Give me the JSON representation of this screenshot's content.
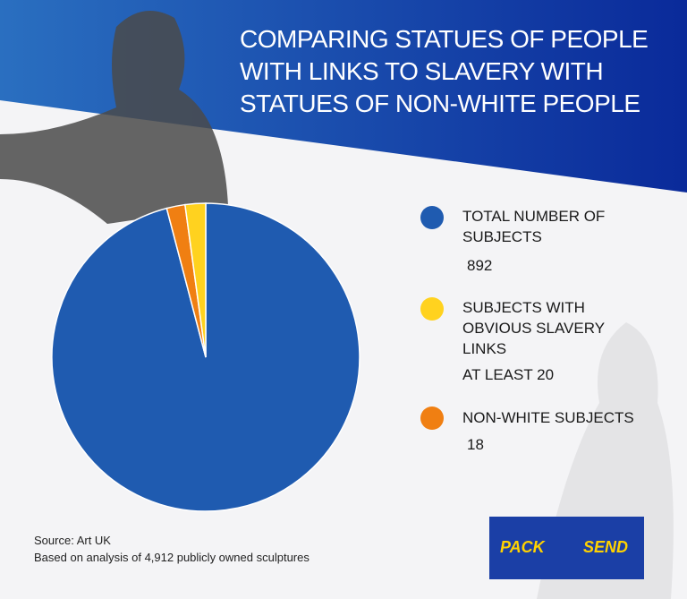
{
  "chart_data": {
    "type": "pie",
    "title": "COMPARING STATUES OF PEOPLE WITH LINKS TO SLAVERY WITH STATUES OF NON-WHITE PEOPLE",
    "categories": [
      "TOTAL NUMBER OF SUBJECTS",
      "SUBJECTS WITH OBVIOUS SLAVERY LINKS",
      "NON-WHITE SUBJECTS"
    ],
    "values": [
      892,
      20,
      18
    ],
    "value_labels": [
      "892",
      "AT LEAST 20",
      "18"
    ],
    "colors": [
      "#1f5bb0",
      "#ffd21f",
      "#f07f12"
    ],
    "source": "Source: Art UK",
    "note": "Based on analysis of 4,912 publicly owned sculptures"
  },
  "logo": {
    "left": "PACK",
    "right": "SEND"
  }
}
